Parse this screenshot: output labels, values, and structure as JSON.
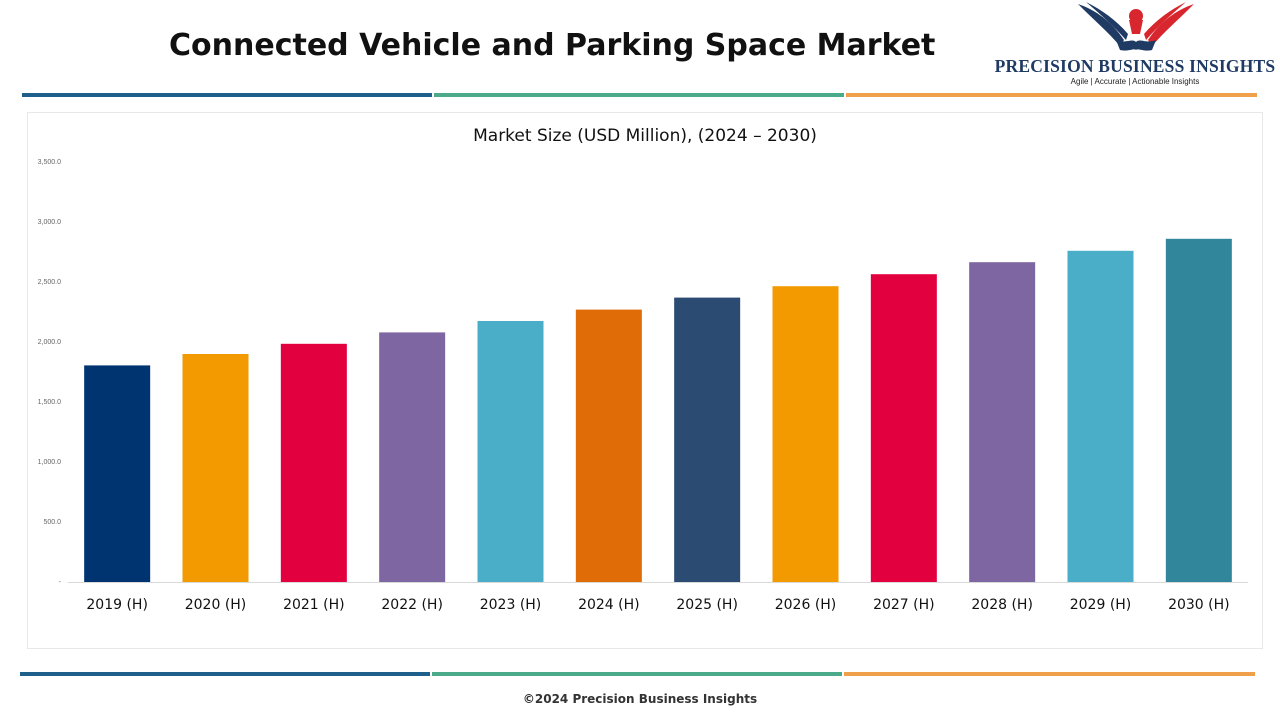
{
  "header": {
    "title": "Connected Vehicle and Parking Space Market"
  },
  "logo": {
    "name": "PRECISION BUSINESS INSIGHTS",
    "tagline": "Agile | Accurate | Actionable Insights"
  },
  "footer": {
    "copyright": "©2024 Precision Business Insights"
  },
  "colors": {
    "divider_blue": "#1f5f8b",
    "divider_green": "#4aaa8a",
    "divider_orange": "#f0a04b",
    "logo_navy": "#1f3a63",
    "logo_red": "#d8262f"
  },
  "chart_data": {
    "type": "bar",
    "title": "Market Size (USD Million), (2024 – 2030)",
    "categories": [
      "2019 (H)",
      "2020 (H)",
      "2021 (H)",
      "2022 (H)",
      "2023 (H)",
      "2024 (H)",
      "2025 (H)",
      "2026 (H)",
      "2027 (H)",
      "2028 (H)",
      "2029 (H)",
      "2030 (H)"
    ],
    "values": [
      1805,
      1900,
      1985,
      2080,
      2175,
      2270,
      2370,
      2465,
      2565,
      2665,
      2760,
      2860
    ],
    "colors": [
      "#003470",
      "#f29a00",
      "#e2003e",
      "#7e66a2",
      "#4aaec8",
      "#e06c08",
      "#2c4b72",
      "#f29a00",
      "#e2003e",
      "#7e66a2",
      "#4aaec8",
      "#31869c"
    ],
    "y_ticks": [
      "-",
      "500.0",
      "1,000.0",
      "1,500.0",
      "2,000.0",
      "2,500.0",
      "3,000.0",
      "3,500.0"
    ],
    "ylim": [
      0,
      3500
    ],
    "grid": false,
    "xlabel": "",
    "ylabel": ""
  }
}
